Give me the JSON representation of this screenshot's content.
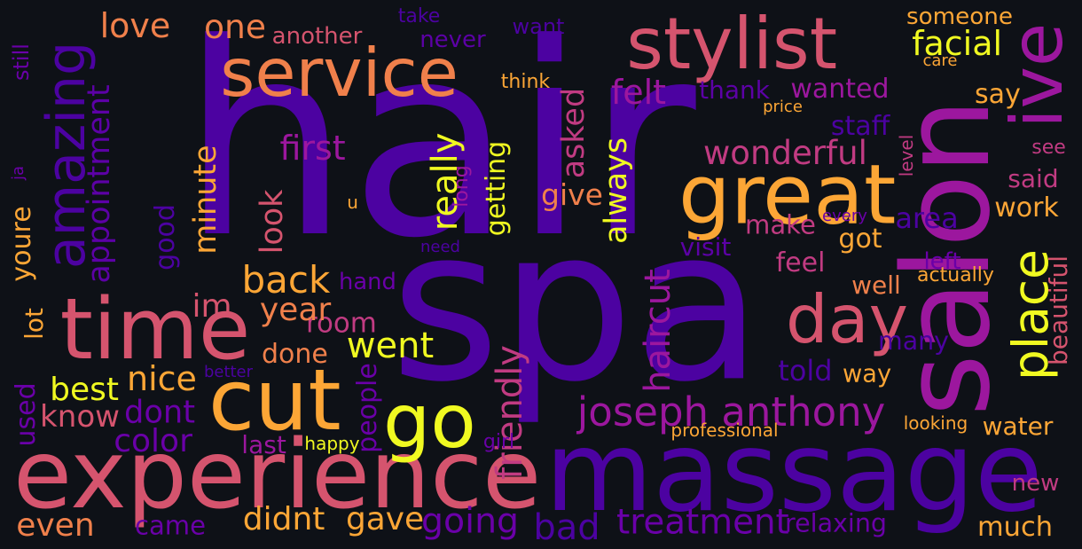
{
  "words": [
    {
      "text": "hair",
      "color": "#4c02a1",
      "rotate": false
    },
    {
      "text": "spa",
      "color": "#4c02a1",
      "rotate": false
    },
    {
      "text": "massage",
      "color": "#4c02a1",
      "rotate": false
    },
    {
      "text": "salon",
      "color": "#9c179e",
      "rotate": true
    },
    {
      "text": "experience",
      "color": "#d5546e",
      "rotate": false
    },
    {
      "text": "stylist",
      "color": "#d5546e",
      "rotate": false
    },
    {
      "text": "service",
      "color": "#f0804b",
      "rotate": false
    },
    {
      "text": "great",
      "color": "#fca636",
      "rotate": false
    },
    {
      "text": "time",
      "color": "#d5546e",
      "rotate": false
    },
    {
      "text": "amazing",
      "color": "#4c02a1",
      "rotate": true
    },
    {
      "text": "cut",
      "color": "#fca636",
      "rotate": false
    },
    {
      "text": "go",
      "color": "#f0f921",
      "rotate": false
    },
    {
      "text": "day",
      "color": "#d5546e",
      "rotate": false
    },
    {
      "text": "place",
      "color": "#f0f921",
      "rotate": true
    },
    {
      "text": "ive",
      "color": "#9c179e",
      "rotate": true
    },
    {
      "text": "joseph anthony",
      "color": "#9c179e",
      "rotate": false
    },
    {
      "text": "back",
      "color": "#fca636",
      "rotate": false
    },
    {
      "text": "appointment",
      "color": "#5c01a6",
      "rotate": true
    },
    {
      "text": "went",
      "color": "#f0f921",
      "rotate": false
    },
    {
      "text": "best",
      "color": "#f0f921",
      "rotate": false
    },
    {
      "text": "nice",
      "color": "#fca636",
      "rotate": false
    },
    {
      "text": "wonderful",
      "color": "#c13b82",
      "rotate": false
    },
    {
      "text": "love",
      "color": "#f0804b",
      "rotate": false
    },
    {
      "text": "one",
      "color": "#f0804b",
      "rotate": false
    },
    {
      "text": "facial",
      "color": "#f0f921",
      "rotate": false
    },
    {
      "text": "felt",
      "color": "#9c179e",
      "rotate": false
    },
    {
      "text": "first",
      "color": "#9c179e",
      "rotate": false
    },
    {
      "text": "treatment",
      "color": "#6a00a8",
      "rotate": false
    },
    {
      "text": "relaxing",
      "color": "#6a00a8",
      "rotate": false
    },
    {
      "text": "going",
      "color": "#6a00a8",
      "rotate": false
    },
    {
      "text": "color",
      "color": "#6a00a8",
      "rotate": false
    },
    {
      "text": "even",
      "color": "#f0804b",
      "rotate": false
    },
    {
      "text": "came",
      "color": "#6a00a8",
      "rotate": false
    },
    {
      "text": "didnt",
      "color": "#fca636",
      "rotate": false
    },
    {
      "text": "gave",
      "color": "#fca636",
      "rotate": false
    },
    {
      "text": "bad",
      "color": "#4c02a1",
      "rotate": false
    },
    {
      "text": "much",
      "color": "#fca636",
      "rotate": false
    },
    {
      "text": "know",
      "color": "#d5546e",
      "rotate": false
    },
    {
      "text": "dont",
      "color": "#6a00a8",
      "rotate": false
    },
    {
      "text": "done",
      "color": "#f0804b",
      "rotate": false
    },
    {
      "text": "room",
      "color": "#c13b82",
      "rotate": false
    },
    {
      "text": "im",
      "color": "#d5546e",
      "rotate": false
    },
    {
      "text": "year",
      "color": "#f0804b",
      "rotate": false
    },
    {
      "text": "hand",
      "color": "#6a00a8",
      "rotate": false
    },
    {
      "text": "friendly",
      "color": "#c13b82",
      "rotate": true
    },
    {
      "text": "haircut",
      "color": "#9c179e",
      "rotate": true
    },
    {
      "text": "really",
      "color": "#f0f921",
      "rotate": true
    },
    {
      "text": "getting",
      "color": "#f0f921",
      "rotate": true
    },
    {
      "text": "always",
      "color": "#f0f921",
      "rotate": true
    },
    {
      "text": "asked",
      "color": "#c13b82",
      "rotate": true
    },
    {
      "text": "give",
      "color": "#f0804b",
      "rotate": false
    },
    {
      "text": "look",
      "color": "#d5546e",
      "rotate": true
    },
    {
      "text": "minute",
      "color": "#fca636",
      "rotate": true
    },
    {
      "text": "good",
      "color": "#4c02a1",
      "rotate": true
    },
    {
      "text": "youre",
      "color": "#fca636",
      "rotate": true
    },
    {
      "text": "lot",
      "color": "#fca636",
      "rotate": true
    },
    {
      "text": "used",
      "color": "#6a00a8",
      "rotate": true
    },
    {
      "text": "people",
      "color": "#6a00a8",
      "rotate": true
    },
    {
      "text": "another",
      "color": "#d5546e",
      "rotate": false
    },
    {
      "text": "never",
      "color": "#5c01a6",
      "rotate": false
    },
    {
      "text": "want",
      "color": "#4c02a1",
      "rotate": false
    },
    {
      "text": "take",
      "color": "#4c02a1",
      "rotate": false
    },
    {
      "text": "think",
      "color": "#fca636",
      "rotate": false
    },
    {
      "text": "thank",
      "color": "#5c01a6",
      "rotate": false
    },
    {
      "text": "wanted",
      "color": "#9c179e",
      "rotate": false
    },
    {
      "text": "someone",
      "color": "#fca636",
      "rotate": false
    },
    {
      "text": "care",
      "color": "#fca636",
      "rotate": false
    },
    {
      "text": "say",
      "color": "#fca636",
      "rotate": false
    },
    {
      "text": "price",
      "color": "#fca636",
      "rotate": false
    },
    {
      "text": "staff",
      "color": "#4c02a1",
      "rotate": false
    },
    {
      "text": "see",
      "color": "#c13b82",
      "rotate": false
    },
    {
      "text": "said",
      "color": "#c13b82",
      "rotate": false
    },
    {
      "text": "work",
      "color": "#fca636",
      "rotate": false
    },
    {
      "text": "area",
      "color": "#4c02a1",
      "rotate": false
    },
    {
      "text": "every",
      "color": "#6a00a8",
      "rotate": false
    },
    {
      "text": "make",
      "color": "#c13b82",
      "rotate": false
    },
    {
      "text": "got",
      "color": "#fca636",
      "rotate": false
    },
    {
      "text": "visit",
      "color": "#5c01a6",
      "rotate": false
    },
    {
      "text": "feel",
      "color": "#c13b82",
      "rotate": false
    },
    {
      "text": "left",
      "color": "#6a00a8",
      "rotate": false
    },
    {
      "text": "well",
      "color": "#f0804b",
      "rotate": false
    },
    {
      "text": "actually",
      "color": "#fca636",
      "rotate": false
    },
    {
      "text": "beautiful",
      "color": "#d5546e",
      "rotate": true
    },
    {
      "text": "many",
      "color": "#4c02a1",
      "rotate": false
    },
    {
      "text": "told",
      "color": "#4c02a1",
      "rotate": false
    },
    {
      "text": "way",
      "color": "#fca636",
      "rotate": false
    },
    {
      "text": "better",
      "color": "#4c02a1",
      "rotate": false
    },
    {
      "text": "last",
      "color": "#9c179e",
      "rotate": false
    },
    {
      "text": "happy",
      "color": "#f0f921",
      "rotate": false
    },
    {
      "text": "girl",
      "color": "#6a00a8",
      "rotate": false
    },
    {
      "text": "professional",
      "color": "#fca636",
      "rotate": false
    },
    {
      "text": "looking",
      "color": "#fca636",
      "rotate": false
    },
    {
      "text": "water",
      "color": "#fca636",
      "rotate": false
    },
    {
      "text": "new",
      "color": "#c13b82",
      "rotate": false
    },
    {
      "text": "u",
      "color": "#fca636",
      "rotate": false
    },
    {
      "text": "need",
      "color": "#4c02a1",
      "rotate": false
    },
    {
      "text": "long",
      "color": "#9c179e",
      "rotate": true
    },
    {
      "text": "level",
      "color": "#c13b82",
      "rotate": true
    },
    {
      "text": "still",
      "color": "#6a00a8",
      "rotate": true
    },
    {
      "text": "ja",
      "color": "#6a00a8",
      "rotate": true
    }
  ]
}
